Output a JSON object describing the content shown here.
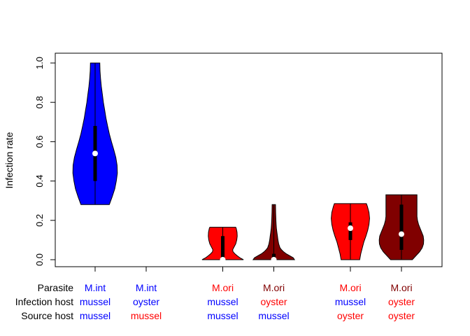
{
  "chart_data": {
    "type": "violin",
    "title": "",
    "xlabel": "",
    "ylabel": "Infection rate",
    "ylim": [
      0,
      1
    ],
    "yticks": [
      "0.0",
      "0.2",
      "0.4",
      "0.6",
      "0.8",
      "1.0"
    ],
    "row_labels": [
      "Parasite",
      "Infection host",
      "Source host"
    ],
    "colors": {
      "blue": "#0000ff",
      "red": "#ff0000",
      "darkred": "#800000",
      "outline": "#000000",
      "median": "#ffffff"
    },
    "groups": [
      {
        "position": 1,
        "labels": [
          {
            "text": "M.int",
            "color": "#0000ff"
          },
          {
            "text": "mussel",
            "color": "#0000ff"
          },
          {
            "text": "mussel",
            "color": "#0000ff"
          }
        ],
        "fill": "#0000ff",
        "min": 0.28,
        "q1": 0.4,
        "median": 0.54,
        "q3": 0.68,
        "max": 1.0,
        "density": [
          [
            0.28,
            0.55
          ],
          [
            0.32,
            0.66
          ],
          [
            0.36,
            0.76
          ],
          [
            0.4,
            0.82
          ],
          [
            0.44,
            0.86
          ],
          [
            0.48,
            0.85
          ],
          [
            0.52,
            0.8
          ],
          [
            0.56,
            0.72
          ],
          [
            0.6,
            0.63
          ],
          [
            0.64,
            0.55
          ],
          [
            0.68,
            0.48
          ],
          [
            0.72,
            0.42
          ],
          [
            0.76,
            0.37
          ],
          [
            0.8,
            0.32
          ],
          [
            0.84,
            0.28
          ],
          [
            0.88,
            0.24
          ],
          [
            0.92,
            0.21
          ],
          [
            0.96,
            0.19
          ],
          [
            1.0,
            0.18
          ]
        ]
      },
      {
        "position": 2,
        "labels": [
          {
            "text": "M.int",
            "color": "#0000ff"
          },
          {
            "text": "oyster",
            "color": "#0000ff"
          },
          {
            "text": "mussel",
            "color": "#ff0000"
          }
        ],
        "fill": "#0000ff",
        "empty": true
      },
      {
        "position": 3.5,
        "labels": [
          {
            "text": "M.ori",
            "color": "#ff0000"
          },
          {
            "text": "mussel",
            "color": "#0000ff"
          },
          {
            "text": "mussel",
            "color": "#0000ff"
          }
        ],
        "fill": "#ff0000",
        "min": 0.0,
        "q1": 0.0,
        "median": 0.0,
        "q3": 0.12,
        "max": 0.165,
        "density": [
          [
            0.0,
            0.8
          ],
          [
            0.01,
            0.66
          ],
          [
            0.02,
            0.56
          ],
          [
            0.03,
            0.47
          ],
          [
            0.04,
            0.4
          ],
          [
            0.05,
            0.38
          ],
          [
            0.06,
            0.42
          ],
          [
            0.08,
            0.5
          ],
          [
            0.1,
            0.54
          ],
          [
            0.12,
            0.56
          ],
          [
            0.14,
            0.55
          ],
          [
            0.16,
            0.52
          ],
          [
            0.165,
            0.5
          ]
        ]
      },
      {
        "position": 4.5,
        "labels": [
          {
            "text": "M.ori",
            "color": "#800000"
          },
          {
            "text": "oyster",
            "color": "#ff0000"
          },
          {
            "text": "mussel",
            "color": "#0000ff"
          }
        ],
        "fill": "#800000",
        "min": 0.0,
        "q1": 0.0,
        "median": 0.0,
        "q3": 0.03,
        "max": 0.28,
        "density": [
          [
            0.0,
            0.8
          ],
          [
            0.01,
            0.75
          ],
          [
            0.02,
            0.62
          ],
          [
            0.03,
            0.48
          ],
          [
            0.04,
            0.38
          ],
          [
            0.05,
            0.3
          ],
          [
            0.06,
            0.24
          ],
          [
            0.08,
            0.19
          ],
          [
            0.1,
            0.16
          ],
          [
            0.12,
            0.14
          ],
          [
            0.14,
            0.12
          ],
          [
            0.16,
            0.1
          ],
          [
            0.18,
            0.09
          ],
          [
            0.2,
            0.08
          ],
          [
            0.22,
            0.075
          ],
          [
            0.24,
            0.07
          ],
          [
            0.26,
            0.068
          ],
          [
            0.28,
            0.065
          ]
        ]
      },
      {
        "position": 6,
        "labels": [
          {
            "text": "M.ori",
            "color": "#ff0000"
          },
          {
            "text": "mussel",
            "color": "#0000ff"
          },
          {
            "text": "oyster",
            "color": "#ff0000"
          }
        ],
        "fill": "#ff0000",
        "min": 0.0,
        "q1": 0.1,
        "median": 0.16,
        "q3": 0.19,
        "max": 0.285,
        "density": [
          [
            0.0,
            0.36
          ],
          [
            0.03,
            0.4
          ],
          [
            0.06,
            0.46
          ],
          [
            0.09,
            0.52
          ],
          [
            0.12,
            0.6
          ],
          [
            0.15,
            0.67
          ],
          [
            0.18,
            0.72
          ],
          [
            0.21,
            0.74
          ],
          [
            0.24,
            0.72
          ],
          [
            0.27,
            0.66
          ],
          [
            0.285,
            0.62
          ]
        ]
      },
      {
        "position": 7,
        "labels": [
          {
            "text": "M.ori",
            "color": "#800000"
          },
          {
            "text": "oyster",
            "color": "#ff0000"
          },
          {
            "text": "oyster",
            "color": "#ff0000"
          }
        ],
        "fill": "#800000",
        "min": 0.0,
        "q1": 0.05,
        "median": 0.13,
        "q3": 0.28,
        "max": 0.33,
        "density": [
          [
            0.0,
            0.42
          ],
          [
            0.02,
            0.56
          ],
          [
            0.04,
            0.7
          ],
          [
            0.06,
            0.8
          ],
          [
            0.08,
            0.85
          ],
          [
            0.1,
            0.86
          ],
          [
            0.12,
            0.84
          ],
          [
            0.14,
            0.78
          ],
          [
            0.16,
            0.72
          ],
          [
            0.18,
            0.66
          ],
          [
            0.2,
            0.62
          ],
          [
            0.22,
            0.6
          ],
          [
            0.24,
            0.6
          ],
          [
            0.26,
            0.6
          ],
          [
            0.28,
            0.6
          ],
          [
            0.3,
            0.6
          ],
          [
            0.33,
            0.6
          ]
        ]
      }
    ]
  }
}
